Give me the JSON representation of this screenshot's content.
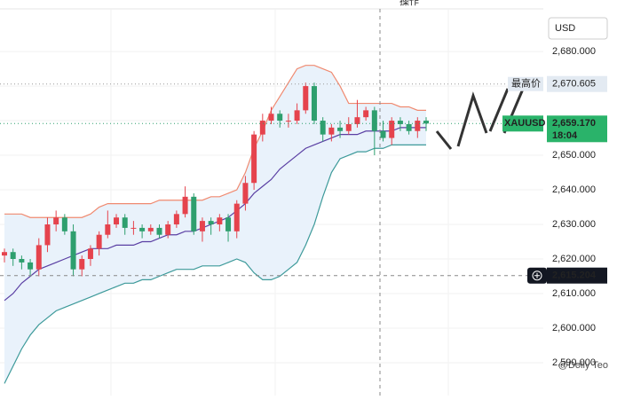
{
  "header": {
    "action": "操作"
  },
  "watermark": "@Dolly Teo",
  "chart_data": {
    "type": "candlestick",
    "currency": "USD",
    "up_color": "#e5434d",
    "down_color": "#2e9f6e",
    "open": [
      2621,
      2622,
      2620,
      2619,
      2617,
      2624,
      2630,
      2632,
      2628,
      2617,
      2620,
      2623,
      2627,
      2630,
      2632,
      2629,
      2629,
      2628,
      2629,
      2627,
      2630,
      2633,
      2638,
      2628,
      2631,
      2630,
      2632,
      2628,
      2636,
      2642,
      2656,
      2660,
      2662,
      2660,
      2660,
      2663,
      2670,
      2660,
      2656,
      2658,
      2657,
      2659,
      2661,
      2663,
      2657,
      2655,
      2660,
      2659,
      2657,
      2660
    ],
    "high": [
      2623,
      2623,
      2621,
      2620,
      2626,
      2632,
      2634,
      2633,
      2630,
      2621,
      2624,
      2628,
      2634,
      2633,
      2633,
      2631,
      2630,
      2630,
      2630,
      2631,
      2634,
      2641,
      2639,
      2632,
      2632,
      2633,
      2633,
      2637,
      2644,
      2657,
      2662,
      2664,
      2663,
      2662,
      2665,
      2671,
      2671,
      2661,
      2659,
      2660,
      2661,
      2666,
      2664,
      2664,
      2660,
      2661,
      2661,
      2660,
      2661,
      2661
    ],
    "low": [
      2619,
      2618,
      2617,
      2615,
      2615,
      2622,
      2628,
      2627,
      2615,
      2615,
      2618,
      2621,
      2626,
      2629,
      2627,
      2627,
      2626,
      2627,
      2626,
      2626,
      2629,
      2632,
      2627,
      2625,
      2627,
      2628,
      2625,
      2626,
      2634,
      2640,
      2654,
      2659,
      2658,
      2658,
      2659,
      2662,
      2659,
      2654,
      2654,
      2655,
      2656,
      2658,
      2660,
      2650,
      2654,
      2653,
      2657,
      2656,
      2655,
      2657
    ],
    "close": [
      2622,
      2620,
      2619,
      2617,
      2624,
      2630,
      2632,
      2628,
      2617,
      2620,
      2623,
      2627,
      2630,
      2632,
      2629,
      2629,
      2628,
      2629,
      2627,
      2630,
      2633,
      2638,
      2628,
      2631,
      2630,
      2632,
      2628,
      2636,
      2642,
      2656,
      2660,
      2662,
      2660,
      2660,
      2663,
      2670,
      2660,
      2656,
      2658,
      2657,
      2659,
      2661,
      2663,
      2657,
      2655,
      2660,
      2659,
      2657,
      2660,
      2659.17
    ],
    "bands": [
      {
        "color": "#f08a70",
        "values": [
          2633,
          2633,
          2633,
          2632,
          2632,
          2632,
          2632,
          2632,
          2632,
          2632,
          2633,
          2635,
          2636,
          2636,
          2636,
          2636,
          2636,
          2636,
          2637,
          2637,
          2637,
          2637,
          2637,
          2637,
          2638,
          2638,
          2639,
          2640,
          2645,
          2652,
          2657,
          2663,
          2667,
          2671,
          2675,
          2676,
          2676,
          2675,
          2674,
          2670,
          2665,
          2665,
          2665,
          2665,
          2665,
          2665,
          2664,
          2664,
          2663,
          2663
        ]
      },
      {
        "color": "#5a3fa3",
        "values": [
          2608,
          2610,
          2613,
          2615,
          2617,
          2618,
          2619,
          2620,
          2621,
          2622,
          2623,
          2623,
          2623,
          2624,
          2624,
          2624,
          2625,
          2625,
          2626,
          2627,
          2627,
          2628,
          2628,
          2629,
          2630,
          2631,
          2632,
          2634,
          2636,
          2639,
          2641,
          2643,
          2646,
          2648,
          2650,
          2652,
          2653,
          2654,
          2655,
          2656,
          2656,
          2656,
          2657,
          2657,
          2657,
          2657,
          2658,
          2658,
          2658,
          2658
        ]
      },
      {
        "color": "#3d9a9a",
        "values": [
          2584,
          2589,
          2594,
          2598,
          2601,
          2603,
          2605,
          2606,
          2607,
          2608,
          2609,
          2610,
          2611,
          2612,
          2613,
          2613,
          2614,
          2614,
          2615,
          2616,
          2617,
          2617,
          2617,
          2618,
          2618,
          2618,
          2619,
          2620,
          2619,
          2616,
          2614,
          2614,
          2615,
          2617,
          2619,
          2624,
          2630,
          2638,
          2645,
          2649,
          2650,
          2651,
          2651,
          2652,
          2652,
          2653,
          2653,
          2653,
          2653,
          2653
        ]
      }
    ],
    "band_fill": "#e9f2fb",
    "ylim": [
      2580.5,
      2694.9
    ],
    "yticks": [
      {
        "value": 2590,
        "label": "2,590.000"
      },
      {
        "value": 2600,
        "label": "2,600.000"
      },
      {
        "value": 2610,
        "label": "2,610.000"
      },
      {
        "value": 2620,
        "label": "2,620.000"
      },
      {
        "value": 2630,
        "label": "2,630.000"
      },
      {
        "value": 2640,
        "label": "2,640.000"
      },
      {
        "value": 2650,
        "label": "2,650.000"
      },
      {
        "value": 2660,
        "label": "2,660.000"
      },
      {
        "value": 2670,
        "label": "2,670.000"
      },
      {
        "value": 2680,
        "label": "2,680.000"
      }
    ],
    "grid": true,
    "high_marker": {
      "name": "最高价",
      "value": 2670.605,
      "label": "2,670.605"
    },
    "last_marker": {
      "name": "XAUUSD",
      "value": 2659.17,
      "label": "2,659.170",
      "countdown": "18:04"
    },
    "cursor_marker": {
      "value": 2615.204,
      "label": "2,615.204"
    }
  }
}
